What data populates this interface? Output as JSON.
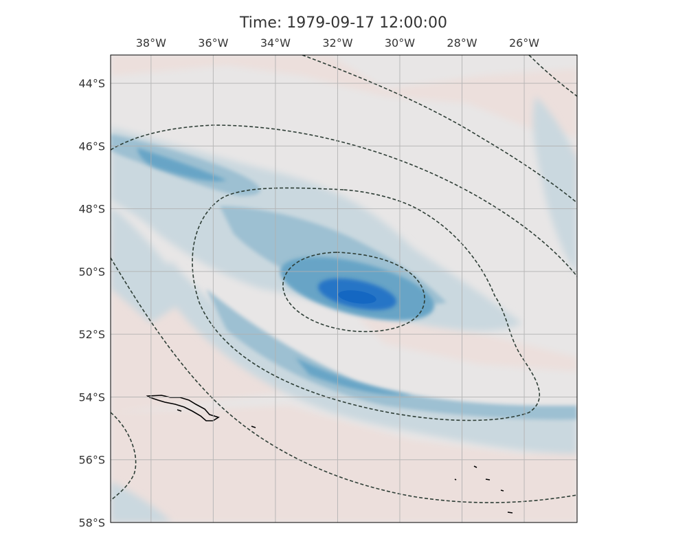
{
  "title": "Time: 1979-09-17 12:00:00",
  "lon_ticks": [
    {
      "value": -38,
      "label": "38°W"
    },
    {
      "value": -36,
      "label": "36°W"
    },
    {
      "value": -34,
      "label": "34°W"
    },
    {
      "value": -32,
      "label": "32°W"
    },
    {
      "value": -30,
      "label": "30°W"
    },
    {
      "value": -28,
      "label": "28°W"
    },
    {
      "value": -26,
      "label": "26°W"
    }
  ],
  "lat_ticks": [
    {
      "value": -44,
      "label": "44°S"
    },
    {
      "value": -46,
      "label": "46°S"
    },
    {
      "value": -48,
      "label": "48°S"
    },
    {
      "value": -50,
      "label": "50°S"
    },
    {
      "value": -52,
      "label": "52°S"
    },
    {
      "value": -54,
      "label": "54°S"
    },
    {
      "value": -56,
      "label": "56°S"
    },
    {
      "value": -58,
      "label": "58°S"
    }
  ],
  "extent": {
    "lon": [
      -39.3,
      -24.3
    ],
    "lat": [
      -58.0,
      -43.1
    ]
  },
  "gridlines": true,
  "colors": {
    "background_neutral": "#e6e7e8",
    "warm_anomaly": "#ecdcda",
    "cool_light": "#c9d8df",
    "cool_mid": "#93bcd0",
    "cool_strong": "#5b9cc3",
    "cool_core": "#1a6fc4",
    "contour_line": "#2d3d35",
    "coastline": "#000000",
    "gridline": "#b3b3b3"
  }
}
